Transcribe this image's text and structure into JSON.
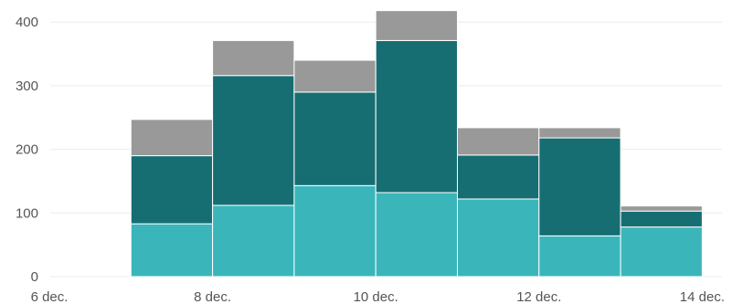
{
  "chart_data": {
    "type": "bar",
    "stacked": true,
    "title": "",
    "xlabel": "",
    "ylabel": "",
    "x_tick_labels": [
      "6 dec.",
      "8 dec.",
      "10 dec.",
      "12 dec.",
      "14 dec."
    ],
    "y_tick_labels": [
      "0",
      "100",
      "200",
      "300",
      "400"
    ],
    "y_ticks": [
      0,
      100,
      200,
      300,
      400
    ],
    "ylim": [
      0,
      430
    ],
    "grid": "horizontal",
    "categories": [
      "7 dec.",
      "8 dec.",
      "9 dec.",
      "10 dec.",
      "11 dec.",
      "12 dec.",
      "13 dec."
    ],
    "series": [
      {
        "color": "#3ab6bb",
        "values": [
          83,
          112,
          143,
          132,
          122,
          64,
          78
        ]
      },
      {
        "color": "#176e72",
        "values": [
          107,
          204,
          147,
          239,
          69,
          154,
          25
        ]
      },
      {
        "color": "#999999",
        "values": [
          57,
          55,
          50,
          47,
          43,
          16,
          8
        ]
      }
    ]
  }
}
